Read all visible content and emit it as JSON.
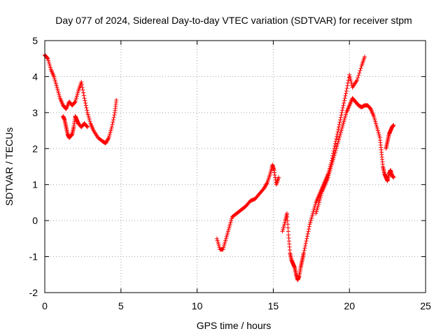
{
  "chart_data": {
    "type": "scatter",
    "title": "Day 077 of 2024, Sidereal Day-to-day VTEC variation (SDTVAR) for receiver stpm",
    "xlabel": "GPS time / hours",
    "ylabel": "SDTVAR / TECUs",
    "xlim": [
      0,
      25
    ],
    "ylim": [
      -2,
      5
    ],
    "x_ticks": [
      "0",
      "5",
      "10",
      "15",
      "20",
      "25"
    ],
    "y_ticks": [
      "-2",
      "-1",
      "0",
      "1",
      "2",
      "3",
      "4",
      "5"
    ],
    "grid": true,
    "marker": "plus",
    "color": "#ff0000",
    "segments": [
      {
        "x": [
          0.0,
          0.2,
          0.4,
          0.6,
          0.8,
          1.0,
          1.2,
          1.4,
          1.6,
          1.8,
          2.0,
          2.2,
          2.4,
          2.6,
          2.8,
          3.0,
          3.2,
          3.5,
          3.8,
          4.0,
          4.2,
          4.4,
          4.6,
          4.7
        ],
        "y": [
          4.6,
          4.5,
          4.2,
          4.0,
          3.7,
          3.4,
          3.2,
          3.1,
          3.3,
          3.2,
          3.3,
          3.6,
          3.85,
          3.4,
          3.0,
          2.7,
          2.5,
          2.3,
          2.2,
          2.15,
          2.3,
          2.6,
          3.0,
          3.35
        ]
      },
      {
        "x": [
          1.2,
          1.3,
          1.4,
          1.5,
          1.6,
          1.7,
          1.8,
          1.9,
          2.0,
          2.1,
          2.2,
          2.4,
          2.6,
          2.8
        ],
        "y": [
          2.9,
          2.8,
          2.6,
          2.4,
          2.3,
          2.35,
          2.4,
          2.6,
          2.9,
          2.8,
          2.7,
          2.6,
          2.7,
          2.6
        ]
      },
      {
        "x": [
          11.3,
          11.5,
          11.7,
          11.9,
          12.1,
          12.3,
          12.6,
          12.9,
          13.2,
          13.5,
          13.8,
          14.1,
          14.4,
          14.6,
          14.8,
          14.95,
          15.05,
          15.2,
          15.35
        ],
        "y": [
          -0.5,
          -0.8,
          -0.8,
          -0.5,
          -0.2,
          0.1,
          0.2,
          0.3,
          0.4,
          0.55,
          0.6,
          0.75,
          0.9,
          1.05,
          1.3,
          1.55,
          1.4,
          1.0,
          1.2
        ]
      },
      {
        "x": [
          15.6,
          15.8,
          15.9,
          16.0,
          16.1,
          16.2,
          16.3,
          16.4,
          16.5,
          16.6,
          16.7,
          16.8,
          16.9,
          17.0,
          17.2,
          17.4,
          17.6,
          17.8,
          18.0,
          18.2,
          18.4,
          18.6,
          18.8,
          19.0,
          19.2,
          19.4,
          19.6,
          19.8,
          20.0,
          20.2,
          20.5,
          20.8,
          21.0
        ],
        "y": [
          -0.3,
          0.0,
          0.2,
          -0.4,
          -0.9,
          -1.1,
          -1.2,
          -1.3,
          -1.5,
          -1.65,
          -1.55,
          -1.3,
          -1.1,
          -0.9,
          -0.5,
          -0.1,
          0.2,
          0.5,
          0.7,
          0.9,
          1.1,
          1.3,
          1.6,
          2.0,
          2.4,
          2.8,
          3.2,
          3.6,
          4.05,
          3.7,
          3.9,
          4.3,
          4.55
        ]
      },
      {
        "x": [
          17.8,
          18.0,
          18.2,
          18.4,
          18.6,
          18.8,
          19.0,
          19.2,
          19.4,
          19.6,
          19.8,
          20.0,
          20.2,
          20.4,
          20.6,
          20.8,
          21.0,
          21.2,
          21.4,
          21.6,
          21.8,
          22.0,
          22.1,
          22.2,
          22.3,
          22.4,
          22.5,
          22.6,
          22.7,
          22.8,
          22.9
        ],
        "y": [
          0.2,
          0.5,
          0.8,
          1.0,
          1.2,
          1.5,
          1.8,
          2.1,
          2.4,
          2.7,
          3.0,
          3.2,
          3.4,
          3.3,
          3.2,
          3.15,
          3.2,
          3.2,
          3.1,
          2.9,
          2.6,
          2.3,
          1.9,
          1.5,
          1.3,
          1.2,
          1.1,
          1.3,
          1.4,
          1.25,
          1.2
        ]
      },
      {
        "x": [
          22.4,
          22.5,
          22.6,
          22.7,
          22.8,
          22.9
        ],
        "y": [
          2.0,
          2.2,
          2.4,
          2.5,
          2.6,
          2.65
        ]
      }
    ]
  }
}
